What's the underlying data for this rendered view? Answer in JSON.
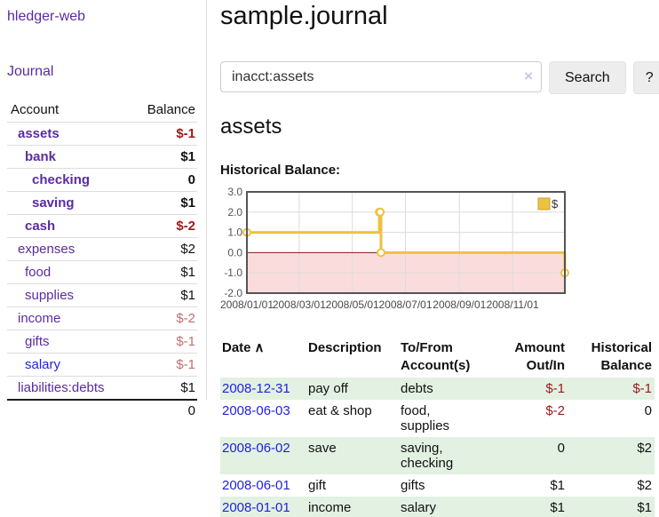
{
  "app": {
    "brand": "hledger-web",
    "nav_journal": "Journal"
  },
  "sidebar": {
    "col_account": "Account",
    "col_balance": "Balance",
    "accounts": [
      {
        "label": "assets",
        "balance": "$-1",
        "indent": 1,
        "bold": true,
        "balance_style": "neg",
        "link_style": "purple"
      },
      {
        "label": "bank",
        "balance": "$1",
        "indent": 2,
        "bold": true,
        "balance_style": "normal",
        "link_style": "purple"
      },
      {
        "label": "checking",
        "balance": "0",
        "indent": 3,
        "bold": true,
        "balance_style": "normal",
        "link_style": "purple"
      },
      {
        "label": "saving",
        "balance": "$1",
        "indent": 3,
        "bold": true,
        "balance_style": "normal",
        "link_style": "purple"
      },
      {
        "label": "cash",
        "balance": "$-2",
        "indent": 2,
        "bold": true,
        "balance_style": "neg",
        "link_style": "purple"
      },
      {
        "label": "expenses",
        "balance": "$2",
        "indent": 1,
        "bold": false,
        "balance_style": "normal",
        "link_style": "purple"
      },
      {
        "label": "food",
        "balance": "$1",
        "indent": 2,
        "bold": false,
        "balance_style": "normal",
        "link_style": "purple"
      },
      {
        "label": "supplies",
        "balance": "$1",
        "indent": 2,
        "bold": false,
        "balance_style": "normal",
        "link_style": "purple"
      },
      {
        "label": "income",
        "balance": "$-2",
        "indent": 1,
        "bold": false,
        "balance_style": "neg-muted",
        "link_style": "purple"
      },
      {
        "label": "gifts",
        "balance": "$-1",
        "indent": 2,
        "bold": false,
        "balance_style": "neg-muted",
        "link_style": "purple"
      },
      {
        "label": "salary",
        "balance": "$-1",
        "indent": 2,
        "bold": false,
        "balance_style": "neg-muted",
        "link_style": "blue"
      },
      {
        "label": "liabilities:debts",
        "balance": "$1",
        "indent": 1,
        "bold": false,
        "balance_style": "normal",
        "link_style": "purple"
      }
    ],
    "total": "0"
  },
  "header": {
    "title": "sample.journal"
  },
  "search": {
    "query": "inacct:assets",
    "clear_icon": "×",
    "button_label": "Search",
    "help_label": "?"
  },
  "register": {
    "heading": "assets",
    "chart_label": "Historical Balance:",
    "table": {
      "col_date": "Date",
      "sort_icon": "∧",
      "col_description": "Description",
      "col_accounts": "To/From Account(s)",
      "col_amount": "Amount Out/In",
      "col_balance": "Historical Balance",
      "rows": [
        {
          "date": "2008-12-31",
          "description": "pay off",
          "accounts": "debts",
          "amount": "$-1",
          "amount_style": "neg",
          "balance": "$-1",
          "balance_style": "neg"
        },
        {
          "date": "2008-06-03",
          "description": "eat & shop",
          "accounts": "food, supplies",
          "amount": "$-2",
          "amount_style": "neg",
          "balance": "0",
          "balance_style": "normal"
        },
        {
          "date": "2008-06-02",
          "description": "save",
          "accounts": "saving, checking",
          "amount": "0",
          "amount_style": "normal",
          "balance": "$2",
          "balance_style": "normal"
        },
        {
          "date": "2008-06-01",
          "description": "gift",
          "accounts": "gifts",
          "amount": "$1",
          "amount_style": "normal",
          "balance": "$2",
          "balance_style": "normal"
        },
        {
          "date": "2008-01-01",
          "description": "income",
          "accounts": "salary",
          "amount": "$1",
          "amount_style": "normal",
          "balance": "$1",
          "balance_style": "normal"
        }
      ]
    }
  },
  "chart_data": {
    "type": "line",
    "style": "step",
    "title": "Historical Balance:",
    "series": [
      {
        "name": "$",
        "color": "#edc240",
        "points": [
          [
            "2008-01-01",
            1
          ],
          [
            "2008-06-01",
            2
          ],
          [
            "2008-06-02",
            2
          ],
          [
            "2008-06-03",
            0
          ],
          [
            "2008-12-31",
            -1
          ]
        ]
      }
    ],
    "xlim": [
      "2008-01-01",
      "2008-12-31"
    ],
    "ylim": [
      -2,
      3
    ],
    "yticks": [
      3,
      2,
      1,
      0,
      -1,
      -2
    ],
    "ytick_labels": [
      "3.0",
      "2.0",
      "1.0",
      "0.0",
      "-1.0",
      "-2.0"
    ],
    "xticks": [
      "2008-01-01",
      "2008-03-01",
      "2008-05-01",
      "2008-07-01",
      "2008-09-01",
      "2008-11-01"
    ],
    "xtick_labels": [
      "2008/01/01",
      "2008/03/01",
      "2008/05/01",
      "2008/07/01",
      "2008/09/01",
      "2008/11/01"
    ],
    "legend": {
      "label": "$",
      "position": "top-right"
    },
    "grid": true
  },
  "colors": {
    "link_purple": "#5a2ca0",
    "link_blue": "#2222dd",
    "negative_strong": "#9b1a1a",
    "negative_muted": "#c07070",
    "row_stripe_green": "#e2f1e2",
    "chart_line_gold": "#edc240",
    "chart_negative_region": "#fbdcdc",
    "chart_zero_line": "#8b1414",
    "chart_border": "#545454",
    "chart_grid": "#dcdcdc"
  }
}
